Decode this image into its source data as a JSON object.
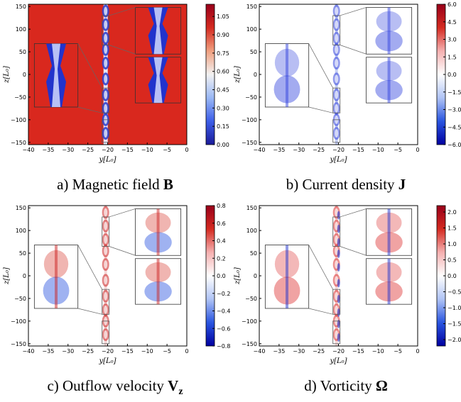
{
  "chart_data": [
    {
      "type": "heatmap",
      "caption": {
        "prefix": "a) Magnetic field ",
        "symbol": "B"
      },
      "xlabel": "y[L₀]",
      "ylabel": "z[L₀]",
      "xlim": [
        -40,
        0
      ],
      "ylim": [
        -155,
        155
      ],
      "xticks": [
        "−40",
        "−35",
        "−30",
        "−25",
        "−20",
        "−15",
        "−10",
        "−5",
        "0"
      ],
      "yticks": [
        "150",
        "100",
        "50",
        "0",
        "−50",
        "−100",
        "−150"
      ],
      "colorbar": {
        "min": 0.0,
        "max": 1.15,
        "ticks": [
          "1.05",
          "0.90",
          "0.75",
          "0.60",
          "0.45",
          "0.30",
          "0.15",
          "0.00"
        ],
        "colors": [
          "#1a1a99",
          "#3d5ee8",
          "#9ab8f5",
          "#f2f2f2",
          "#f0a080",
          "#d42a20",
          "#99001a"
        ]
      },
      "background": "#d9281e",
      "sheet_color": "#2233cc"
    },
    {
      "type": "heatmap",
      "caption": {
        "prefix": "b) Current density ",
        "symbol": "J"
      },
      "xlabel": "y[L₀]",
      "ylabel": "z[L₀]",
      "xlim": [
        -40,
        0
      ],
      "ylim": [
        -155,
        155
      ],
      "xticks": [
        "−40",
        "−35",
        "−30",
        "−25",
        "−20",
        "−15",
        "−10",
        "−5",
        "0"
      ],
      "yticks": [
        "150",
        "100",
        "50",
        "0",
        "−50",
        "−100",
        "−150"
      ],
      "colorbar": {
        "min": -6.0,
        "max": 6.0,
        "ticks": [
          "6.0",
          "4.5",
          "3.0",
          "1.5",
          "0.0",
          "−1.5",
          "−3.0",
          "−4.5",
          "−6.0"
        ],
        "colors": [
          "#0000a0",
          "#2a55e0",
          "#b0c4f5",
          "#ffffff",
          "#f5b0b0",
          "#d42a20",
          "#99001a"
        ]
      },
      "background": "#ffffff",
      "sheet_color": "#3344dd"
    },
    {
      "type": "heatmap",
      "caption": {
        "prefix": "c) Outflow velocity ",
        "symbol": "V",
        "subscript": "z"
      },
      "xlabel": "y[L₀]",
      "ylabel": "z[L₀]",
      "xlim": [
        -40,
        0
      ],
      "ylim": [
        -155,
        155
      ],
      "xticks": [
        "−40",
        "−35",
        "−30",
        "−25",
        "−20",
        "−15",
        "−10",
        "−5",
        "0"
      ],
      "yticks": [
        "150",
        "100",
        "50",
        "0",
        "−50",
        "−100",
        "−150"
      ],
      "colorbar": {
        "min": -0.8,
        "max": 0.8,
        "ticks": [
          "0.8",
          "0.6",
          "0.4",
          "0.2",
          "0.0",
          "−0.2",
          "−0.4",
          "−0.6",
          "−0.8"
        ],
        "colors": [
          "#0000a0",
          "#2a55e0",
          "#b0c4f5",
          "#ffffff",
          "#f5b0b0",
          "#d42a20",
          "#99001a"
        ]
      },
      "background": "#ffffff",
      "sheet_color": "#cc2222"
    },
    {
      "type": "heatmap",
      "caption": {
        "prefix": "d) Vorticity ",
        "symbol": "Ω"
      },
      "xlabel": "y[L₀]",
      "ylabel": "z[L₀]",
      "xlim": [
        -40,
        0
      ],
      "ylim": [
        -155,
        155
      ],
      "xticks": [
        "−40",
        "−35",
        "−30",
        "−25",
        "−20",
        "−15",
        "−10",
        "−5",
        "0"
      ],
      "yticks": [
        "150",
        "100",
        "50",
        "0",
        "−50",
        "−100",
        "−150"
      ],
      "colorbar": {
        "min": -2.2,
        "max": 2.2,
        "ticks": [
          "2.0",
          "1.5",
          "1.0",
          "0.5",
          "0.0",
          "−0.5",
          "−1.0",
          "−1.5",
          "−2.0"
        ],
        "colors": [
          "#0000a0",
          "#2a55e0",
          "#b0c4f5",
          "#ffffff",
          "#f5b0b0",
          "#d42a20",
          "#99001a"
        ]
      },
      "background": "#ffffff",
      "sheet_color": "#dd3333"
    }
  ]
}
